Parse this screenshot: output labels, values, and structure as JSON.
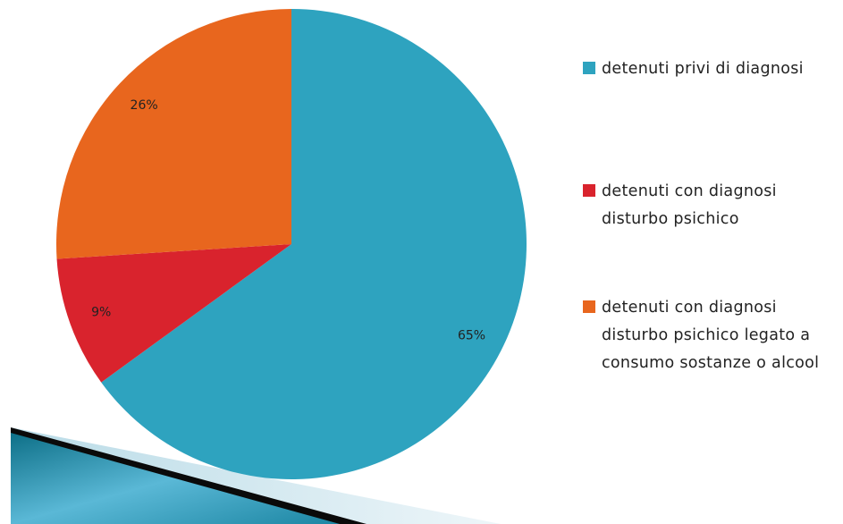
{
  "chart_data": {
    "type": "pie",
    "categories": [
      "detenuti privi di diagnosi",
      "detenuti con diagnosi disturbo psichico",
      "detenuti con diagnosi disturbo psichico legato a consumo sostanze o alcool"
    ],
    "values": [
      65,
      9,
      26
    ],
    "value_labels": [
      "65%",
      "9%",
      "26%"
    ],
    "colors": [
      "#2ea3bf",
      "#d9232d",
      "#e8661e"
    ],
    "start_angle": 0,
    "direction": "clockwise"
  }
}
